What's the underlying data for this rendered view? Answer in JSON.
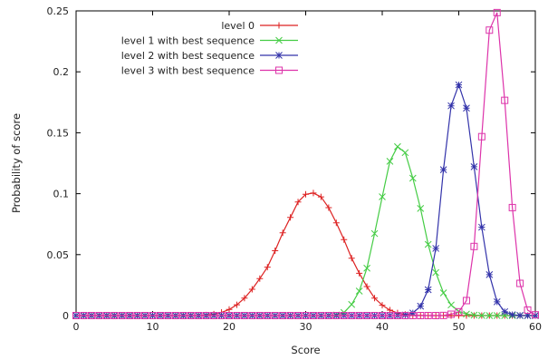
{
  "chart_data": {
    "type": "line",
    "title": "",
    "xlabel": "Score",
    "ylabel": "Probability of score",
    "xlim": [
      0,
      60
    ],
    "ylim": [
      0,
      0.25
    ],
    "x_ticks": [
      0,
      10,
      20,
      30,
      40,
      50,
      60
    ],
    "y_ticks": [
      0,
      0.05,
      0.1,
      0.15,
      0.2,
      0.25
    ],
    "x_tick_labels": [
      "0",
      "10",
      "20",
      "30",
      "40",
      "50",
      "60"
    ],
    "y_tick_labels": [
      "0",
      "0.05",
      "0.1",
      "0.15",
      "0.2",
      "0.25"
    ],
    "grid": false,
    "legend_position": "top-center",
    "series": [
      {
        "name": "level 0",
        "color": "#dd2222",
        "marker": "plus",
        "x": [
          0,
          1,
          2,
          3,
          4,
          5,
          6,
          7,
          8,
          9,
          10,
          11,
          12,
          13,
          14,
          15,
          16,
          17,
          18,
          19,
          20,
          21,
          22,
          23,
          24,
          25,
          26,
          27,
          28,
          29,
          30,
          31,
          32,
          33,
          34,
          35,
          36,
          37,
          38,
          39,
          40,
          41,
          42,
          43,
          44,
          45,
          46,
          47,
          48,
          49,
          50,
          51,
          52,
          53,
          54,
          55,
          56,
          57,
          58,
          59,
          60
        ],
        "values": [
          0,
          0,
          0,
          0,
          0,
          0,
          0,
          0,
          0,
          0,
          0,
          0,
          0,
          0,
          0,
          0,
          0,
          0.0005,
          0.0012,
          0.0026,
          0.005,
          0.0088,
          0.0143,
          0.0216,
          0.0303,
          0.0397,
          0.0532,
          0.0679,
          0.0805,
          0.0932,
          0.0995,
          0.1005,
          0.0974,
          0.0885,
          0.0761,
          0.0623,
          0.0471,
          0.0347,
          0.0238,
          0.0143,
          0.0085,
          0.0045,
          0.0021,
          0.0009,
          0.0003,
          0.0001,
          0,
          0,
          0,
          0,
          0,
          0,
          0,
          0,
          0,
          0,
          0,
          0,
          0,
          0,
          0
        ]
      },
      {
        "name": "level 1 with best sequence",
        "color": "#44cc44",
        "marker": "x",
        "x": [
          0,
          1,
          2,
          3,
          4,
          5,
          6,
          7,
          8,
          9,
          10,
          11,
          12,
          13,
          14,
          15,
          16,
          17,
          18,
          19,
          20,
          21,
          22,
          23,
          24,
          25,
          26,
          27,
          28,
          29,
          30,
          31,
          32,
          33,
          34,
          35,
          36,
          37,
          38,
          39,
          40,
          41,
          42,
          43,
          44,
          45,
          46,
          47,
          48,
          49,
          50,
          51,
          52,
          53,
          54,
          55,
          56,
          57,
          58,
          59,
          60
        ],
        "values": [
          0,
          0,
          0,
          0,
          0,
          0,
          0,
          0,
          0,
          0,
          0,
          0,
          0,
          0,
          0,
          0,
          0,
          0,
          0,
          0,
          0,
          0,
          0,
          0,
          0,
          0,
          0,
          0,
          0,
          0,
          0,
          0,
          0,
          0.0001,
          0.0005,
          0.0025,
          0.0091,
          0.0201,
          0.0389,
          0.0673,
          0.0975,
          0.1266,
          0.1386,
          0.1337,
          0.1127,
          0.0879,
          0.0584,
          0.0353,
          0.0186,
          0.0087,
          0.0035,
          0.0012,
          0.0004,
          0.0001,
          0,
          0,
          0,
          0,
          0,
          0,
          0
        ]
      },
      {
        "name": "level 2 with best sequence",
        "color": "#3333aa",
        "marker": "star",
        "x": [
          0,
          1,
          2,
          3,
          4,
          5,
          6,
          7,
          8,
          9,
          10,
          11,
          12,
          13,
          14,
          15,
          16,
          17,
          18,
          19,
          20,
          21,
          22,
          23,
          24,
          25,
          26,
          27,
          28,
          29,
          30,
          31,
          32,
          33,
          34,
          35,
          36,
          37,
          38,
          39,
          40,
          41,
          42,
          43,
          44,
          45,
          46,
          47,
          48,
          49,
          50,
          51,
          52,
          53,
          54,
          55,
          56,
          57,
          58,
          59,
          60
        ],
        "values": [
          0,
          0,
          0,
          0,
          0,
          0,
          0,
          0,
          0,
          0,
          0,
          0,
          0,
          0,
          0,
          0,
          0,
          0,
          0,
          0,
          0,
          0,
          0,
          0,
          0,
          0,
          0,
          0,
          0,
          0,
          0,
          0,
          0,
          0,
          0,
          0,
          0,
          0,
          0,
          0,
          0,
          0,
          0.0001,
          0.0005,
          0.0021,
          0.0077,
          0.0212,
          0.0551,
          0.1197,
          0.1721,
          0.1893,
          0.1702,
          0.1221,
          0.0725,
          0.0336,
          0.0113,
          0.0032,
          0.0007,
          0.0001,
          0,
          0
        ]
      },
      {
        "name": "level 3 with best sequence",
        "color": "#dd33aa",
        "marker": "square",
        "x": [
          0,
          1,
          2,
          3,
          4,
          5,
          6,
          7,
          8,
          9,
          10,
          11,
          12,
          13,
          14,
          15,
          16,
          17,
          18,
          19,
          20,
          21,
          22,
          23,
          24,
          25,
          26,
          27,
          28,
          29,
          30,
          31,
          32,
          33,
          34,
          35,
          36,
          37,
          38,
          39,
          40,
          41,
          42,
          43,
          44,
          45,
          46,
          47,
          48,
          49,
          50,
          51,
          52,
          53,
          54,
          55,
          56,
          57,
          58,
          59,
          60
        ],
        "values": [
          0,
          0,
          0,
          0,
          0,
          0,
          0,
          0,
          0,
          0,
          0,
          0,
          0,
          0,
          0,
          0,
          0,
          0,
          0,
          0,
          0,
          0,
          0,
          0,
          0,
          0,
          0,
          0,
          0,
          0,
          0,
          0,
          0,
          0,
          0,
          0,
          0,
          0,
          0,
          0,
          0,
          0,
          0,
          0,
          0,
          0,
          0,
          0,
          0.0001,
          0.0011,
          0.0031,
          0.0123,
          0.0567,
          0.1468,
          0.2342,
          0.2486,
          0.1766,
          0.0886,
          0.0264,
          0.0045,
          0.0006
        ]
      }
    ]
  }
}
